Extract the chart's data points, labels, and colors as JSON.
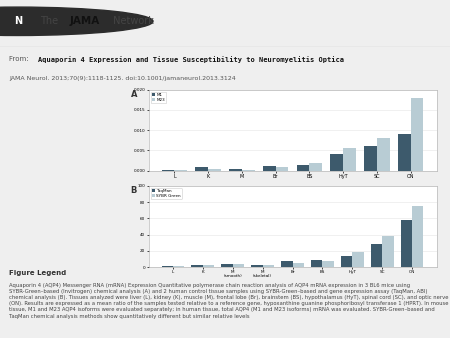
{
  "title_bold": "Aquaporin 4 Expression and Tissue Susceptibility to Neuromyelitis Optica",
  "journal_line": "JAMA Neurol. 2013;70(9):1118-1125. doi:10.1001/jamaneurol.2013.3124",
  "figure_legend_title": "Figure Legend",
  "figure_legend_text": "Aquaporin 4 (AQP4) Messenger RNA (mRNA) Expression Quantitative polymerase chain reaction analysis of AQP4 mRNA expression in 3 BL6 mice using SYBR-Green–based (Invitrogen) chemical analysis (A) and 2 human control tissue samples using SYBR-Green–based and gene expression assay (TaqMan, ABI) chemical analysis (B). Tissues analyzed were liver (L), kidney (K), muscle (M), frontal lobe (Br), brainstem (BS), hypothalamus (HyT), spinal cord (SC), and optic nerve (ON). Results are expressed as a mean ratio of the samples tested relative to a reference gene, hypoxanthine guanine phosphoribosyl transferase 1 (HPRT). In mouse tissue, M1 and M23 AQP4 isoforms were evaluated separately; in human tissue, total AQP4 (M1 and M23 isoforms) mRNA was evaluated. SYBR-Green–based and TaqMan chemical analysis methods show quantitatively different but similar relative levels",
  "panel_A_label": "A",
  "panel_B_label": "B",
  "categories_A": [
    "L",
    "K",
    "M",
    "Br",
    "BS",
    "HyT",
    "SC",
    "ON"
  ],
  "series_A1_label": "M1",
  "series_A2_label": "M23",
  "series_A1_color": "#3d5a6c",
  "series_A2_color": "#b8ccd4",
  "series_A1_values": [
    0.0002,
    0.0008,
    0.0003,
    0.0012,
    0.0015,
    0.004,
    0.006,
    0.009
  ],
  "series_A2_values": [
    0.0001,
    0.0005,
    0.0002,
    0.001,
    0.0018,
    0.0055,
    0.008,
    0.018
  ],
  "ylim_A": [
    0,
    0.02
  ],
  "yticks_A": [
    0,
    0.005,
    0.01,
    0.015,
    0.02
  ],
  "categories_B": [
    "L",
    "K",
    "M\n(smooth)",
    "M\n(skeletal)",
    "Br",
    "BS",
    "HyT",
    "SC",
    "ON"
  ],
  "series_B1_label": "TaqMan",
  "series_B2_label": "SYBR Green",
  "series_B1_color": "#3d5a6c",
  "series_B2_color": "#b8ccd4",
  "series_B1_values": [
    1.5,
    2.5,
    4,
    3,
    7,
    9,
    14,
    28,
    58
  ],
  "series_B2_values": [
    1,
    2,
    3.5,
    2.5,
    5.5,
    7.5,
    18,
    38,
    75
  ],
  "ylim_B": [
    0,
    100
  ],
  "yticks_B": [
    0,
    20,
    40,
    60,
    80,
    100
  ],
  "bg_color": "#efefef",
  "plot_bg": "#ffffff",
  "header_bg": "#ffffff",
  "divider_color": "#cccccc",
  "jama_circle_color": "#2c2c2c"
}
